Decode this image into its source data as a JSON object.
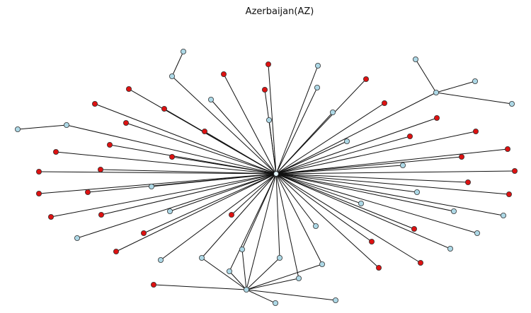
{
  "title": "Azerbaijan(AZ)",
  "colors": {
    "background": "#ffffff",
    "edge": "#111111",
    "node_light": "#add8e6",
    "node_red": "#dd1111",
    "node_stroke": "#333333",
    "hub": "#e6f7ff"
  },
  "graph": {
    "hub": "AZ",
    "node_count": 75,
    "legend": []
  }
}
